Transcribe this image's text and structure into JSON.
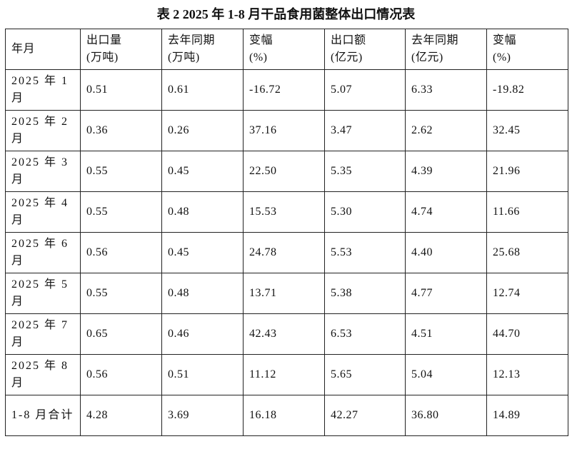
{
  "title": "表 2  2025 年 1-8 月干品食用菌整体出口情况表",
  "table": {
    "header": [
      [
        "年月"
      ],
      [
        "出口量",
        "(万吨)"
      ],
      [
        "去年同期",
        "(万吨)"
      ],
      [
        "变幅",
        "(%)"
      ],
      [
        "出口额",
        "(亿元)"
      ],
      [
        "去年同期",
        "(亿元)"
      ],
      [
        "变幅",
        "(%)"
      ]
    ],
    "rows": [
      [
        "2025 年 1 月",
        "0.51",
        "0.61",
        "-16.72",
        "5.07",
        "6.33",
        "-19.82"
      ],
      [
        "2025 年 2 月",
        "0.36",
        "0.26",
        "37.16",
        "3.47",
        "2.62",
        "32.45"
      ],
      [
        "2025 年 3 月",
        "0.55",
        "0.45",
        "22.50",
        "5.35",
        "4.39",
        "21.96"
      ],
      [
        "2025 年 4 月",
        "0.55",
        "0.48",
        "15.53",
        "5.30",
        "4.74",
        "11.66"
      ],
      [
        "2025 年 6 月",
        "0.56",
        "0.45",
        "24.78",
        "5.53",
        "4.40",
        "25.68"
      ],
      [
        "2025 年 5 月",
        "0.55",
        "0.48",
        "13.71",
        "5.38",
        "4.77",
        "12.74"
      ],
      [
        "2025 年 7 月",
        "0.65",
        "0.46",
        "42.43",
        "6.53",
        "4.51",
        "44.70"
      ],
      [
        "2025 年 8 月",
        "0.56",
        "0.51",
        "11.12",
        "5.65",
        "5.04",
        "12.13"
      ],
      [
        "1-8 月合计",
        "4.28",
        "3.69",
        "16.18",
        "42.27",
        "36.80",
        "14.89"
      ]
    ]
  }
}
